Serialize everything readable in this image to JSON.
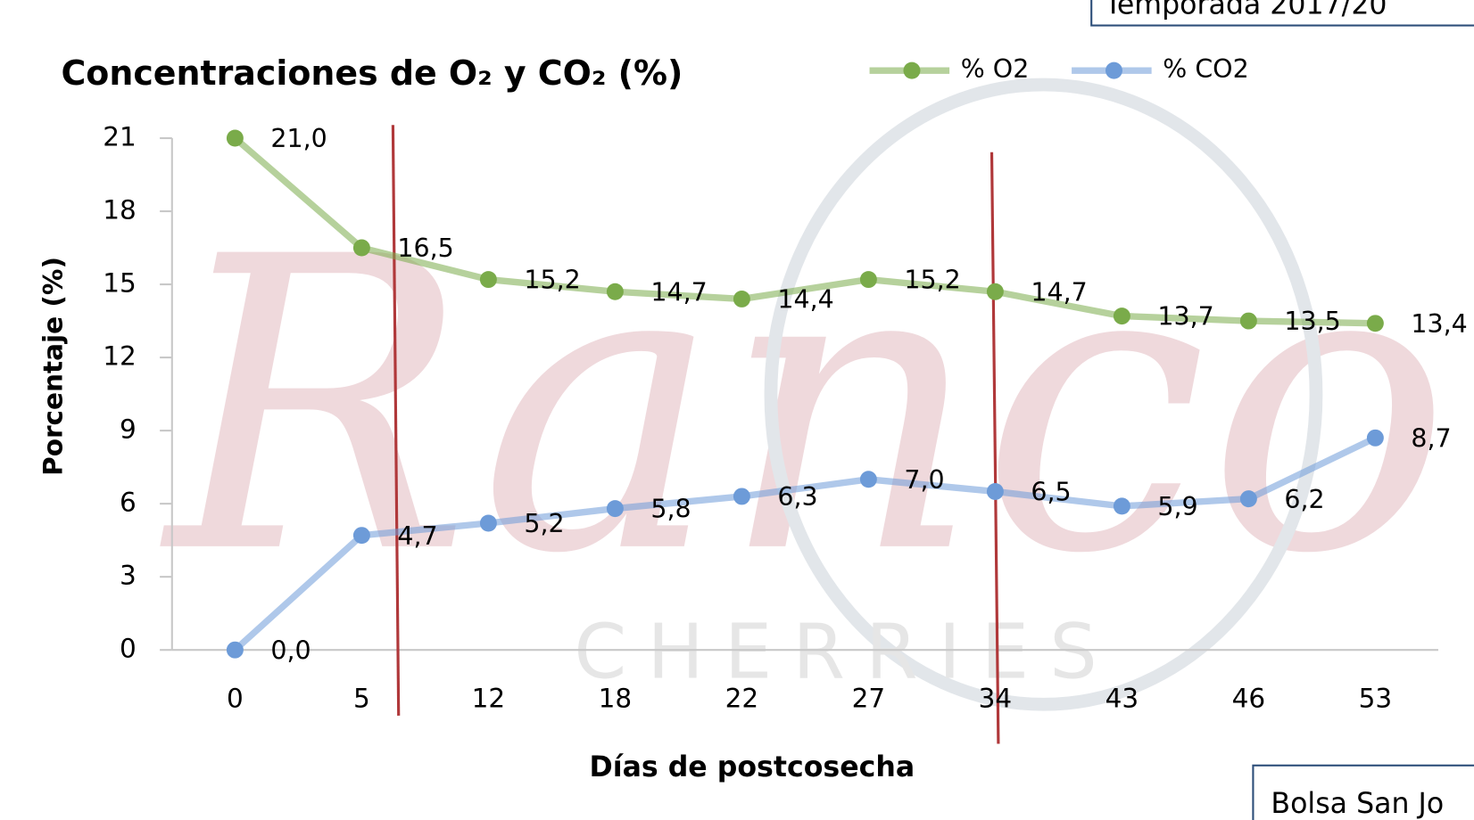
{
  "chart_data": {
    "type": "line",
    "title": "Concentraciones de O₂ y CO₂ (%)",
    "x_label": "Días de postcosecha",
    "y_label": "Porcentaje (%)",
    "categories": [
      "0",
      "5",
      "12",
      "18",
      "22",
      "27",
      "34",
      "43",
      "46",
      "53"
    ],
    "series": [
      {
        "name": "% O2",
        "color": "#7aab4a",
        "values": [
          21.0,
          16.5,
          15.2,
          14.7,
          14.4,
          15.2,
          14.7,
          13.7,
          13.5,
          13.4
        ],
        "value_labels": [
          "21,0",
          "16,5",
          "15,2",
          "14,7",
          "14,4",
          "15,2",
          "14,7",
          "13,7",
          "13,5",
          "13,4"
        ]
      },
      {
        "name": "% CO2",
        "color": "#6d9bd8",
        "values": [
          0.0,
          4.7,
          5.2,
          5.8,
          6.3,
          7.0,
          6.5,
          5.9,
          6.2,
          8.7
        ],
        "value_labels": [
          "0,0",
          "4,7",
          "5,2",
          "5,8",
          "6,3",
          "7,0",
          "6,5",
          "5,9",
          "6,2",
          "8,7"
        ]
      }
    ],
    "ylim": [
      0,
      21
    ],
    "yticks": [
      0,
      3,
      6,
      9,
      12,
      15,
      18,
      21
    ],
    "legend": "top-right",
    "watermark": {
      "script": "Ranco",
      "word": "CHERRIES"
    },
    "boxes": [
      "Temporada  2017/20",
      "Bolsa San Jo"
    ]
  }
}
